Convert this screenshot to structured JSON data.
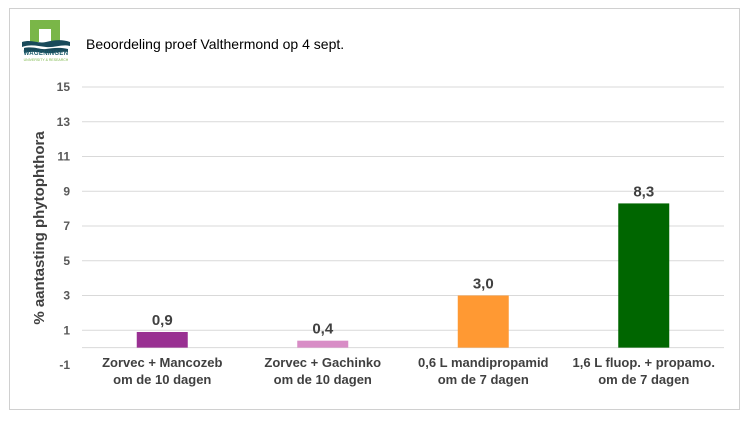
{
  "header": {
    "title": "Beoordeling proef Valthermond op 4 sept.",
    "logo_text": "WAGENINGEN",
    "logo_subtext": "UNIVERSITY & RESEARCH"
  },
  "chart_data": {
    "type": "bar",
    "title": "",
    "ylabel": "% aantasting phytophthora",
    "xlabel": "",
    "ylim": [
      -1,
      15
    ],
    "yticks": [
      "-1",
      "1",
      "3",
      "5",
      "7",
      "9",
      "11",
      "13",
      "15"
    ],
    "grid": true,
    "categories": [
      [
        "Zorvec + Mancozeb",
        "om de 10 dagen"
      ],
      [
        "Zorvec + Gachinko",
        "om de 10 dagen"
      ],
      [
        "0,6 L mandipropamid",
        "om de 7 dagen"
      ],
      [
        "1,6 L fluop. + propamo.",
        "om de 7 dagen"
      ]
    ],
    "values": [
      0.9,
      0.4,
      3.0,
      8.3
    ],
    "data_labels": [
      "0,9",
      "0,4",
      "3,0",
      "8,3"
    ],
    "colors": [
      "#993092",
      "#d88dc6",
      "#ff9933",
      "#006600"
    ]
  }
}
